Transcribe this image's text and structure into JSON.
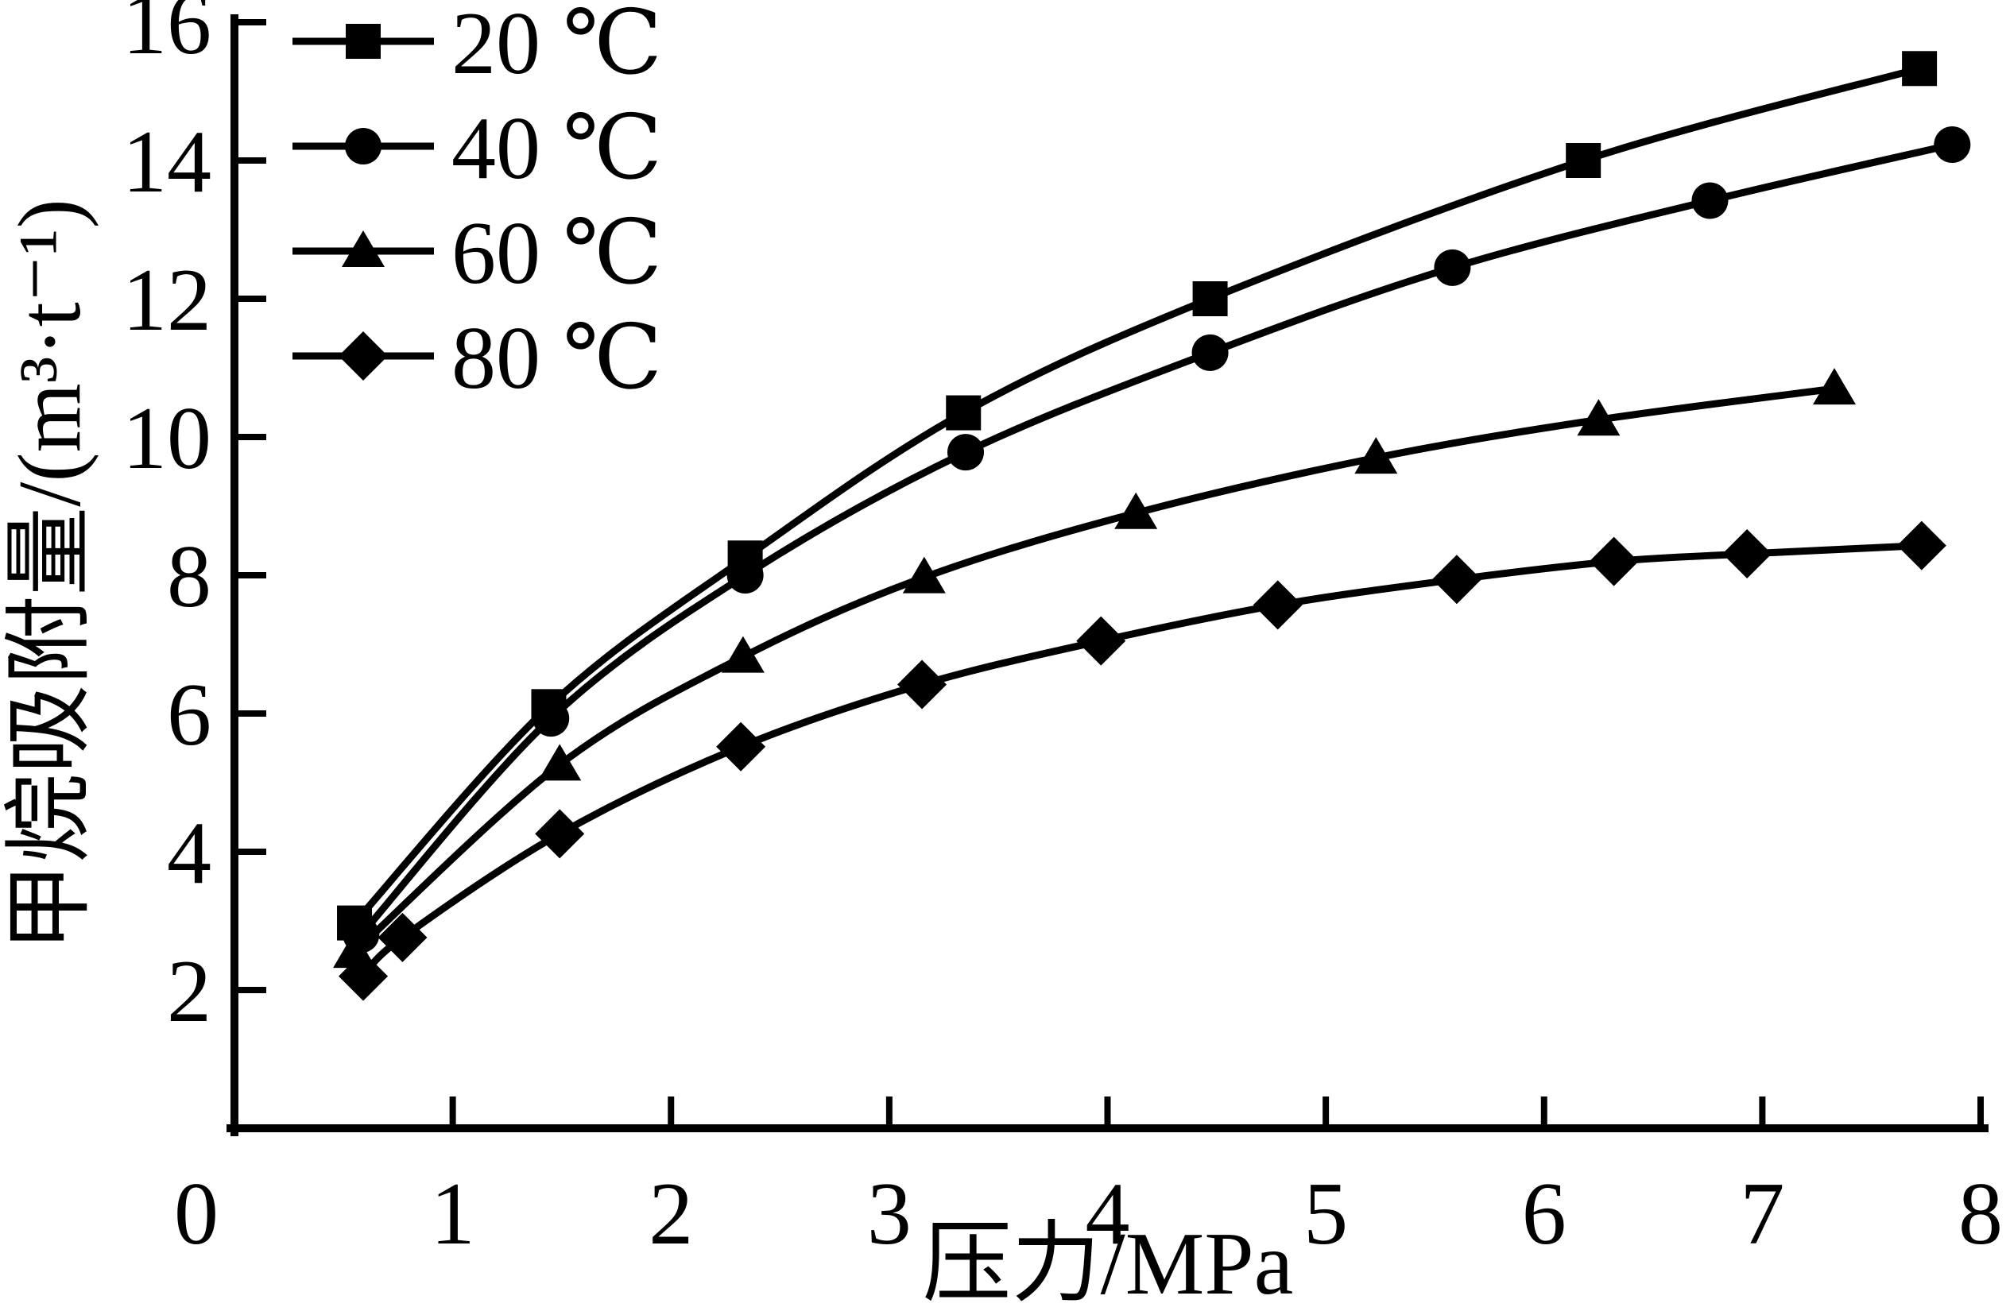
{
  "chart_data": {
    "type": "line",
    "title": "",
    "xlabel": "压力/MPa",
    "ylabel": "甲烷吸附量/(m³·t⁻¹)",
    "xlim": [
      0,
      8
    ],
    "ylim": [
      0,
      16
    ],
    "x_ticks": [
      0,
      1,
      2,
      3,
      4,
      5,
      6,
      7,
      8
    ],
    "y_ticks": [
      2,
      4,
      6,
      8,
      10,
      12,
      14,
      16
    ],
    "grid": false,
    "legend_position": "top-left",
    "line_color": "#000000",
    "background_color": "#ffffff",
    "series": [
      {
        "name": "20 ℃",
        "marker": "square",
        "color": "#000000",
        "points": [
          [
            0.55,
            2.97
          ],
          [
            1.44,
            6.1
          ],
          [
            2.34,
            8.25
          ],
          [
            3.34,
            10.35
          ],
          [
            4.47,
            12.0
          ],
          [
            6.18,
            14.0
          ],
          [
            7.72,
            15.33
          ]
        ]
      },
      {
        "name": "40 ℃",
        "marker": "circle",
        "color": "#000000",
        "points": [
          [
            0.58,
            2.8
          ],
          [
            1.45,
            5.93
          ],
          [
            2.34,
            8.0
          ],
          [
            3.35,
            9.78
          ],
          [
            4.47,
            11.22
          ],
          [
            5.58,
            12.45
          ],
          [
            6.76,
            13.42
          ],
          [
            7.87,
            14.23
          ]
        ]
      },
      {
        "name": "60 ℃",
        "marker": "triangle",
        "color": "#000000",
        "points": [
          [
            0.55,
            2.55
          ],
          [
            1.49,
            5.26
          ],
          [
            2.33,
            6.82
          ],
          [
            3.16,
            7.97
          ],
          [
            4.13,
            8.9
          ],
          [
            5.23,
            9.7
          ],
          [
            6.25,
            10.25
          ],
          [
            7.33,
            10.7
          ]
        ]
      },
      {
        "name": "80 ℃",
        "marker": "diamond",
        "color": "#000000",
        "points": [
          [
            0.59,
            2.2
          ],
          [
            0.77,
            2.76
          ],
          [
            1.49,
            4.26
          ],
          [
            2.32,
            5.52
          ],
          [
            3.15,
            6.42
          ],
          [
            3.97,
            7.05
          ],
          [
            4.78,
            7.57
          ],
          [
            5.6,
            7.94
          ],
          [
            6.32,
            8.2
          ],
          [
            6.93,
            8.31
          ],
          [
            7.73,
            8.43
          ]
        ]
      }
    ]
  }
}
